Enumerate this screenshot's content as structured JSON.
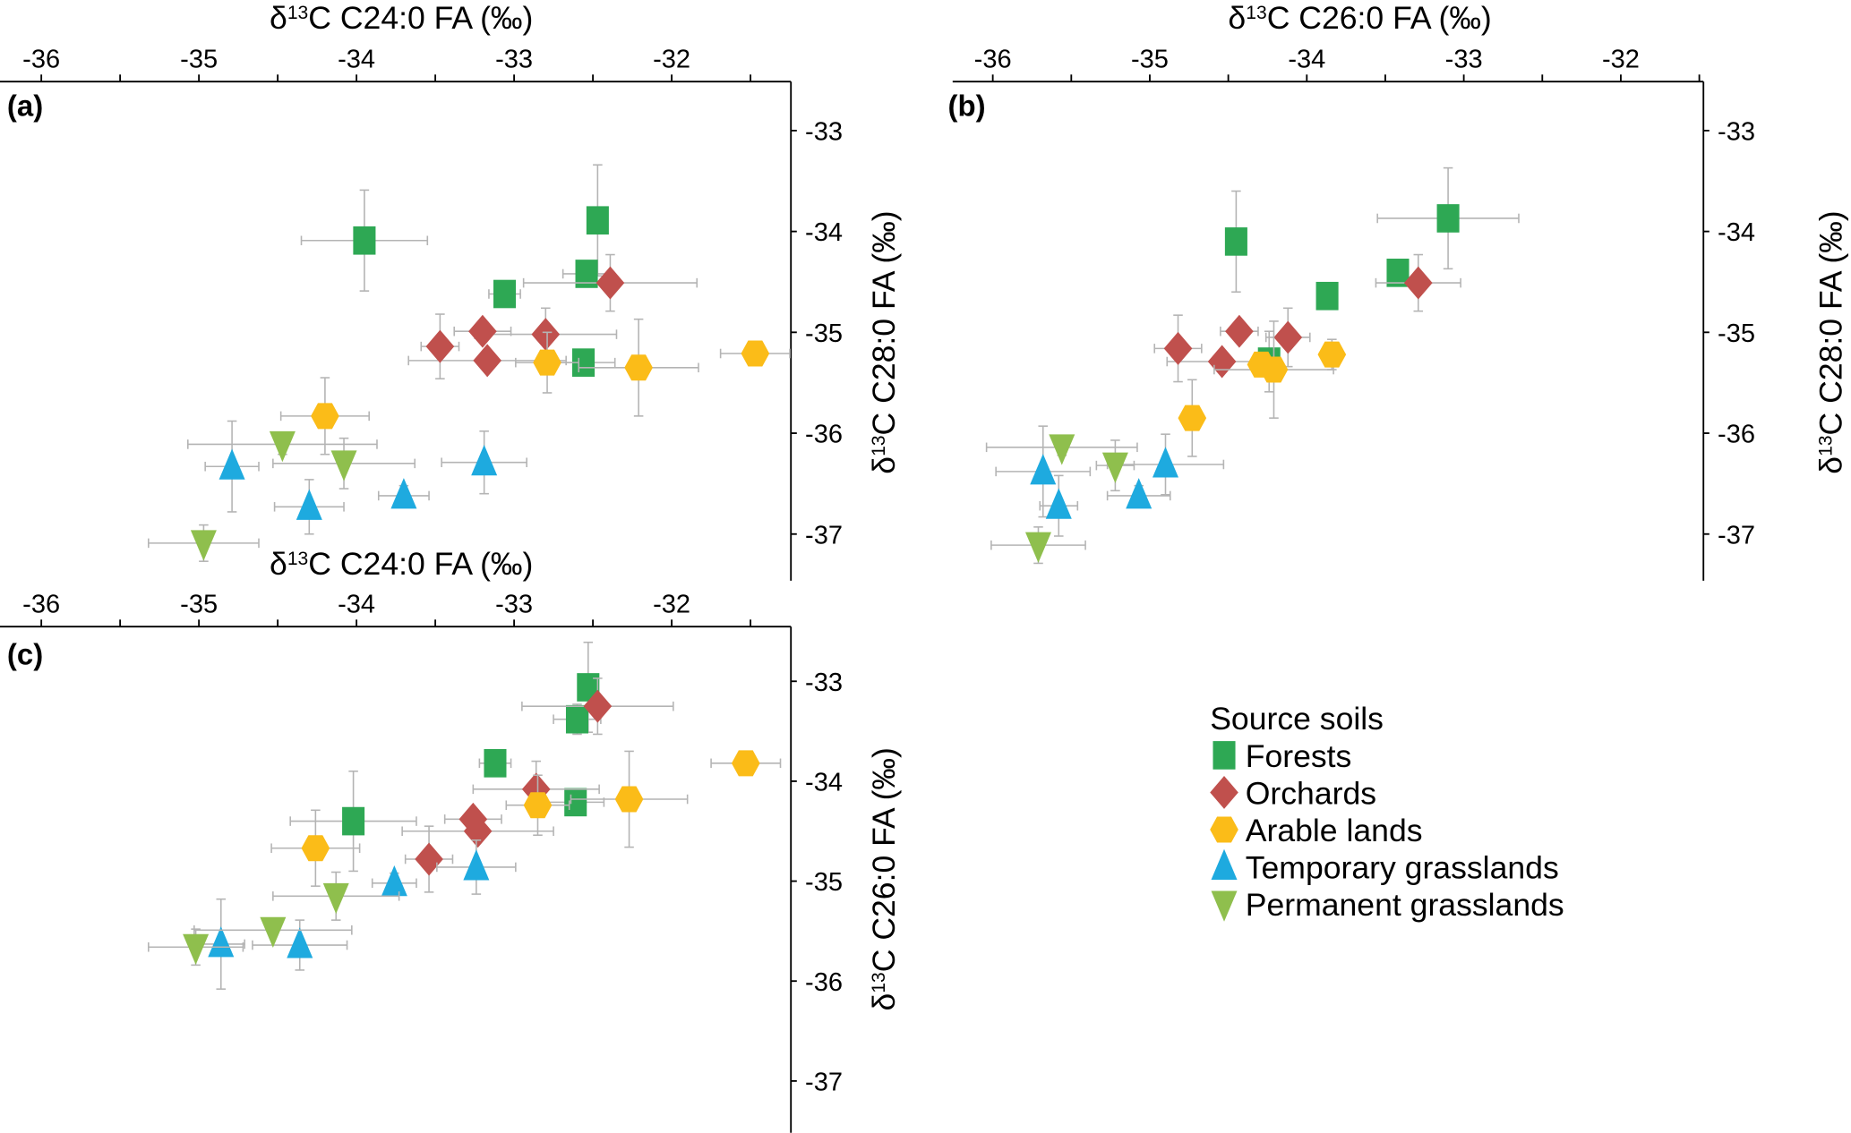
{
  "legend": {
    "title": "Source soils",
    "position": "bottom-right",
    "items": [
      {
        "key": "forests",
        "label": "Forests",
        "marker": "square",
        "color": "#2ea854"
      },
      {
        "key": "orchards",
        "label": "Orchards",
        "marker": "diamond",
        "color": "#c0504d"
      },
      {
        "key": "arable",
        "label": "Arable lands",
        "marker": "hexagon",
        "color": "#fbbc18"
      },
      {
        "key": "temporary",
        "label": "Temporary grasslands",
        "marker": "triangle-up",
        "color": "#1eaadf"
      },
      {
        "key": "permanent",
        "label": "Permanent grasslands",
        "marker": "triangle-down",
        "color": "#8fbf4d"
      }
    ]
  },
  "chart_data": [
    {
      "type": "scatter",
      "panel": "(a)",
      "xlabel": "δ13C C24:0 FA (‰)",
      "ylabel": "δ13C C28:0 FA (‰)",
      "xlim": [
        -36.2,
        -31.25
      ],
      "ylim": [
        -37.45,
        -32.6
      ],
      "xticks": [
        -36,
        -35,
        -34,
        -33,
        -32
      ],
      "yticks": [
        -33,
        -34,
        -35,
        -36,
        -37
      ],
      "xaxis_position": "top",
      "yaxis_position": "right",
      "grid": false,
      "series": [
        {
          "name": "Forests",
          "points": [
            {
              "x": -33.95,
              "y": -34.09,
              "xerr": 0.4,
              "yerr": 0.5
            },
            {
              "x": -32.47,
              "y": -33.89,
              "xerr": 0.0,
              "yerr": 0.55
            },
            {
              "x": -32.54,
              "y": -34.42,
              "xerr": 0.15,
              "yerr": 0.1
            },
            {
              "x": -33.06,
              "y": -34.62,
              "xerr": 0.1,
              "yerr": 0.05
            },
            {
              "x": -32.56,
              "y": -35.3,
              "xerr": 0.2,
              "yerr": 0.05
            }
          ]
        },
        {
          "name": "Orchards",
          "points": [
            {
              "x": -32.39,
              "y": -34.51,
              "xerr": 0.55,
              "yerr": 0.28
            },
            {
              "x": -33.47,
              "y": -35.14,
              "xerr": 0.12,
              "yerr": 0.32
            },
            {
              "x": -33.2,
              "y": -34.99,
              "xerr": 0.18,
              "yerr": 0.05
            },
            {
              "x": -32.8,
              "y": -35.02,
              "xerr": 0.45,
              "yerr": 0.26
            },
            {
              "x": -33.17,
              "y": -35.28,
              "xerr": 0.5,
              "yerr": 0.05
            }
          ]
        },
        {
          "name": "Arable lands",
          "points": [
            {
              "x": -34.2,
              "y": -35.83,
              "xerr": 0.28,
              "yerr": 0.38
            },
            {
              "x": -32.79,
              "y": -35.3,
              "xerr": 0.2,
              "yerr": 0.3
            },
            {
              "x": -32.21,
              "y": -35.35,
              "xerr": 0.38,
              "yerr": 0.48
            },
            {
              "x": -31.47,
              "y": -35.21,
              "xerr": 0.22,
              "yerr": 0.05
            }
          ]
        },
        {
          "name": "Temporary grasslands",
          "points": [
            {
              "x": -34.79,
              "y": -36.33,
              "xerr": 0.17,
              "yerr": 0.45
            },
            {
              "x": -34.3,
              "y": -36.73,
              "xerr": 0.22,
              "yerr": 0.27
            },
            {
              "x": -33.7,
              "y": -36.62,
              "xerr": 0.16,
              "yerr": 0.1
            },
            {
              "x": -33.19,
              "y": -36.29,
              "xerr": 0.27,
              "yerr": 0.31
            }
          ]
        },
        {
          "name": "Permanent grasslands",
          "points": [
            {
              "x": -34.47,
              "y": -36.11,
              "xerr": 0.6,
              "yerr": 0.1
            },
            {
              "x": -34.08,
              "y": -36.3,
              "xerr": 0.45,
              "yerr": 0.25
            },
            {
              "x": -34.97,
              "y": -37.09,
              "xerr": 0.35,
              "yerr": 0.18
            }
          ]
        }
      ]
    },
    {
      "type": "scatter",
      "panel": "(b)",
      "xlabel": "δ13C C26:0 FA (‰)",
      "ylabel": "δ13C C28:0 FA (‰)",
      "xlim": [
        -36.27,
        -31.5
      ],
      "ylim": [
        -37.45,
        -32.6
      ],
      "xticks": [
        -36,
        -35,
        -34,
        -33,
        -32
      ],
      "yticks": [
        -33,
        -34,
        -35,
        -36,
        -37
      ],
      "xaxis_position": "top",
      "yaxis_position": "right",
      "grid": false,
      "series": [
        {
          "name": "Forests",
          "points": [
            {
              "x": -34.45,
              "y": -34.1,
              "xerr": 0.0,
              "yerr": 0.5
            },
            {
              "x": -33.1,
              "y": -33.87,
              "xerr": 0.45,
              "yerr": 0.5
            },
            {
              "x": -33.42,
              "y": -34.41,
              "xerr": 0.05,
              "yerr": 0.1
            },
            {
              "x": -33.87,
              "y": -34.64,
              "xerr": 0.0,
              "yerr": 0.0
            },
            {
              "x": -34.24,
              "y": -35.29,
              "xerr": 0.05,
              "yerr": 0.3
            }
          ]
        },
        {
          "name": "Orchards",
          "points": [
            {
              "x": -33.29,
              "y": -34.51,
              "xerr": 0.27,
              "yerr": 0.28
            },
            {
              "x": -34.82,
              "y": -35.16,
              "xerr": 0.15,
              "yerr": 0.33
            },
            {
              "x": -34.43,
              "y": -34.99,
              "xerr": 0.12,
              "yerr": 0.05
            },
            {
              "x": -34.12,
              "y": -35.05,
              "xerr": 0.14,
              "yerr": 0.29
            },
            {
              "x": -34.54,
              "y": -35.29,
              "xerr": 0.35,
              "yerr": 0.1
            }
          ]
        },
        {
          "name": "Arable lands",
          "points": [
            {
              "x": -34.73,
              "y": -35.85,
              "xerr": 0.0,
              "yerr": 0.38
            },
            {
              "x": -33.84,
              "y": -35.22,
              "xerr": 0.0,
              "yerr": 0.15
            },
            {
              "x": -34.29,
              "y": -35.32,
              "xerr": 0.0,
              "yerr": 0.1
            },
            {
              "x": -34.21,
              "y": -35.37,
              "xerr": 0.38,
              "yerr": 0.48
            }
          ]
        },
        {
          "name": "Temporary grasslands",
          "points": [
            {
              "x": -35.68,
              "y": -36.38,
              "xerr": 0.3,
              "yerr": 0.45
            },
            {
              "x": -35.58,
              "y": -36.72,
              "xerr": 0.12,
              "yerr": 0.3
            },
            {
              "x": -35.07,
              "y": -36.62,
              "xerr": 0.2,
              "yerr": 0.1
            },
            {
              "x": -34.9,
              "y": -36.31,
              "xerr": 0.37,
              "yerr": 0.3
            }
          ]
        },
        {
          "name": "Permanent grasslands",
          "points": [
            {
              "x": -35.56,
              "y": -36.14,
              "xerr": 0.48,
              "yerr": 0.08
            },
            {
              "x": -35.22,
              "y": -36.32,
              "xerr": 0.12,
              "yerr": 0.25
            },
            {
              "x": -35.71,
              "y": -37.11,
              "xerr": 0.3,
              "yerr": 0.18
            }
          ]
        }
      ]
    },
    {
      "type": "scatter",
      "panel": "(c)",
      "xlabel": "δ13C C24:0 FA (‰)",
      "ylabel": "δ13C C26:0 FA (‰)",
      "xlim": [
        -36.2,
        -31.25
      ],
      "ylim": [
        -37.5,
        -32.55
      ],
      "xticks": [
        -36,
        -35,
        -34,
        -33,
        -32
      ],
      "yticks": [
        -33,
        -34,
        -35,
        -36,
        -37
      ],
      "xaxis_position": "top",
      "yaxis_position": "right",
      "grid": false,
      "series": [
        {
          "name": "Forests",
          "points": [
            {
              "x": -32.53,
              "y": -33.06,
              "xerr": 0.0,
              "yerr": 0.45
            },
            {
              "x": -32.6,
              "y": -33.38,
              "xerr": 0.15,
              "yerr": 0.15
            },
            {
              "x": -33.12,
              "y": -33.82,
              "xerr": 0.1,
              "yerr": 0.0
            },
            {
              "x": -32.61,
              "y": -34.21,
              "xerr": 0.18,
              "yerr": 0.1
            },
            {
              "x": -34.02,
              "y": -34.4,
              "xerr": 0.4,
              "yerr": 0.5
            }
          ]
        },
        {
          "name": "Orchards",
          "points": [
            {
              "x": -32.47,
              "y": -33.25,
              "xerr": 0.48,
              "yerr": 0.28
            },
            {
              "x": -32.86,
              "y": -34.08,
              "xerr": 0.4,
              "yerr": 0.28
            },
            {
              "x": -33.26,
              "y": -34.38,
              "xerr": 0.18,
              "yerr": 0.05
            },
            {
              "x": -33.23,
              "y": -34.5,
              "xerr": 0.48,
              "yerr": 0.1
            },
            {
              "x": -33.54,
              "y": -34.78,
              "xerr": 0.15,
              "yerr": 0.33
            }
          ]
        },
        {
          "name": "Arable lands",
          "points": [
            {
              "x": -31.53,
              "y": -33.82,
              "xerr": 0.22,
              "yerr": 0.1
            },
            {
              "x": -32.27,
              "y": -34.18,
              "xerr": 0.37,
              "yerr": 0.48
            },
            {
              "x": -32.85,
              "y": -34.24,
              "xerr": 0.2,
              "yerr": 0.3
            },
            {
              "x": -34.26,
              "y": -34.67,
              "xerr": 0.28,
              "yerr": 0.38
            }
          ]
        },
        {
          "name": "Temporary grasslands",
          "points": [
            {
              "x": -33.24,
              "y": -34.86,
              "xerr": 0.25,
              "yerr": 0.27
            },
            {
              "x": -33.76,
              "y": -35.02,
              "xerr": 0.14,
              "yerr": 0.1
            },
            {
              "x": -34.36,
              "y": -35.64,
              "xerr": 0.3,
              "yerr": 0.25
            },
            {
              "x": -34.86,
              "y": -35.63,
              "xerr": 0.15,
              "yerr": 0.45
            }
          ]
        },
        {
          "name": "Permanent grasslands",
          "points": [
            {
              "x": -34.13,
              "y": -35.15,
              "xerr": 0.4,
              "yerr": 0.24
            },
            {
              "x": -34.53,
              "y": -35.49,
              "xerr": 0.5,
              "yerr": 0.05
            },
            {
              "x": -35.02,
              "y": -35.66,
              "xerr": 0.3,
              "yerr": 0.18
            }
          ]
        }
      ]
    }
  ]
}
